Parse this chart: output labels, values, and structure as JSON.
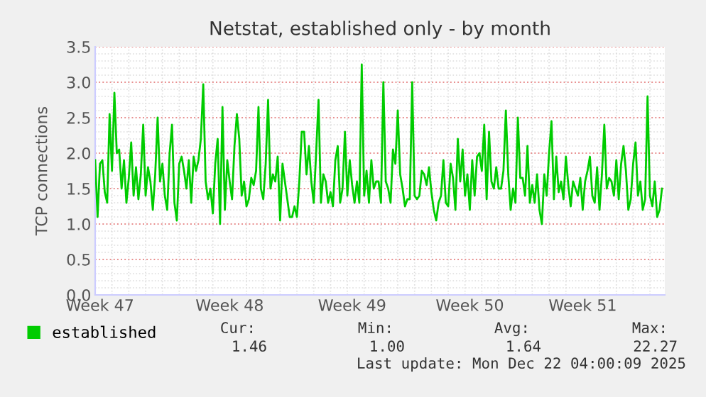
{
  "chart_data": {
    "type": "line",
    "title": "Netstat, established only - by month",
    "ylabel": "TCP connections",
    "categories": [
      null,
      null,
      "Week 47",
      null,
      null,
      null,
      null,
      null,
      null,
      null,
      null,
      null,
      null,
      null,
      null,
      null,
      null,
      null,
      null,
      null,
      null,
      null,
      null,
      null,
      null,
      null,
      null,
      null,
      null,
      null,
      null,
      null,
      null,
      null,
      null,
      null,
      null,
      null,
      null,
      null,
      null,
      null,
      null,
      null,
      null,
      null,
      null,
      null,
      null,
      null,
      null,
      null,
      null,
      null,
      null,
      null,
      "Week 48",
      null,
      null,
      null,
      null,
      null,
      null,
      null,
      null,
      null,
      null,
      null,
      null,
      null,
      null,
      null,
      null,
      null,
      null,
      null,
      null,
      null,
      null,
      null,
      null,
      null,
      null,
      null,
      null,
      null,
      null,
      null,
      null,
      null,
      null,
      null,
      null,
      null,
      null,
      null,
      null,
      null,
      null,
      null,
      null,
      null,
      null,
      null,
      null,
      null,
      null,
      "Week 49",
      null,
      null,
      null,
      null,
      null,
      null,
      null,
      null,
      null,
      null,
      null,
      null,
      null,
      null,
      null,
      null,
      null,
      null,
      null,
      null,
      null,
      null,
      null,
      null,
      null,
      null,
      null,
      null,
      null,
      null,
      null,
      null,
      null,
      null,
      null,
      null,
      null,
      null,
      null,
      null,
      null,
      null,
      null,
      null,
      null,
      null,
      null,
      null,
      "Week 50",
      null,
      null,
      null,
      null,
      null,
      null,
      null,
      null,
      null,
      null,
      null,
      null,
      null,
      null,
      null,
      null,
      null,
      null,
      null,
      null,
      null,
      null,
      null,
      null,
      null,
      null,
      null,
      null,
      null,
      null,
      null,
      null,
      null,
      null,
      null,
      null,
      null,
      null,
      null,
      null,
      null,
      null,
      null,
      null,
      null,
      null,
      "Week 51",
      null,
      null,
      null,
      null,
      null,
      null,
      null,
      null,
      null,
      null,
      null,
      null,
      null,
      null,
      null,
      null,
      null,
      null,
      null,
      null,
      null,
      null,
      null,
      null,
      null,
      null,
      null,
      null,
      null,
      null,
      null,
      null,
      null
    ],
    "series": [
      {
        "name": "established",
        "color": "#00cc00",
        "values": [
          1.9,
          1.1,
          1.85,
          1.9,
          1.45,
          1.3,
          2.55,
          1.75,
          2.85,
          2.0,
          2.05,
          1.5,
          1.9,
          1.3,
          1.65,
          2.15,
          1.4,
          1.8,
          1.35,
          1.7,
          2.4,
          1.4,
          1.8,
          1.6,
          1.2,
          1.7,
          2.5,
          1.6,
          1.85,
          1.4,
          1.2,
          2.0,
          2.4,
          1.3,
          1.05,
          1.85,
          1.95,
          1.75,
          1.5,
          1.9,
          1.3,
          1.95,
          1.75,
          1.9,
          2.2,
          2.97,
          1.6,
          1.35,
          1.5,
          1.15,
          1.85,
          2.2,
          1.0,
          2.65,
          1.2,
          1.9,
          1.6,
          1.35,
          2.1,
          2.55,
          2.2,
          1.4,
          1.6,
          1.25,
          1.35,
          1.65,
          1.55,
          1.75,
          2.65,
          1.5,
          1.35,
          1.85,
          2.75,
          1.5,
          1.7,
          1.6,
          1.95,
          1.05,
          1.85,
          1.6,
          1.35,
          1.1,
          1.1,
          1.25,
          1.1,
          1.6,
          2.3,
          2.3,
          1.7,
          2.1,
          1.6,
          1.3,
          2.0,
          2.75,
          1.3,
          1.7,
          1.6,
          1.3,
          1.45,
          1.25,
          1.9,
          2.1,
          1.3,
          1.5,
          2.3,
          1.4,
          1.9,
          1.55,
          1.3,
          1.6,
          1.3,
          3.25,
          1.4,
          1.75,
          1.3,
          1.9,
          1.5,
          1.6,
          1.6,
          1.3,
          3.0,
          1.6,
          1.5,
          1.3,
          2.05,
          1.85,
          2.6,
          1.7,
          1.5,
          1.25,
          1.35,
          1.35,
          3.0,
          1.4,
          1.35,
          1.4,
          1.75,
          1.7,
          1.55,
          1.8,
          1.45,
          1.2,
          1.05,
          1.3,
          1.4,
          1.9,
          1.3,
          1.25,
          1.85,
          1.65,
          1.2,
          2.2,
          1.6,
          2.05,
          1.4,
          1.7,
          1.2,
          1.9,
          1.4,
          1.95,
          2.0,
          1.75,
          2.4,
          1.35,
          2.3,
          1.6,
          1.5,
          1.8,
          1.5,
          1.5,
          1.75,
          2.6,
          1.7,
          1.2,
          1.5,
          1.3,
          2.5,
          1.65,
          1.65,
          1.4,
          2.1,
          1.3,
          1.55,
          1.3,
          1.7,
          1.2,
          1.0,
          1.7,
          1.4,
          2.0,
          2.45,
          1.35,
          1.95,
          1.45,
          1.6,
          1.35,
          1.95,
          1.55,
          1.25,
          1.6,
          1.5,
          1.4,
          1.65,
          1.2,
          1.6,
          1.75,
          1.95,
          1.4,
          1.3,
          1.8,
          1.2,
          1.7,
          2.4,
          1.5,
          1.65,
          1.6,
          1.4,
          1.9,
          1.35,
          1.85,
          2.1,
          1.75,
          1.2,
          1.35,
          1.85,
          2.15,
          1.4,
          1.6,
          1.2,
          1.35,
          2.8,
          1.4,
          1.25,
          1.6,
          1.1,
          1.2,
          1.5
        ]
      }
    ],
    "ylim": [
      0,
      3.5
    ],
    "yticks": [
      {
        "value": 0,
        "label": "0.0"
      },
      0.5,
      {
        "value": 1,
        "label": "1.0"
      },
      1.5,
      {
        "value": 2,
        "label": "2.0"
      },
      2.5,
      {
        "value": 3,
        "label": "3.0"
      },
      3.5
    ],
    "grid": true,
    "legend": "bottom left",
    "marker": "none",
    "line_style": "solid",
    "annotations": [
      "Cur:",
      "Min:",
      "Avg:",
      "Max:",
      "1.46",
      "1.00",
      "1.64",
      "22.27",
      "Last update: Mon Dec 22 04:00:09 2025"
    ]
  }
}
